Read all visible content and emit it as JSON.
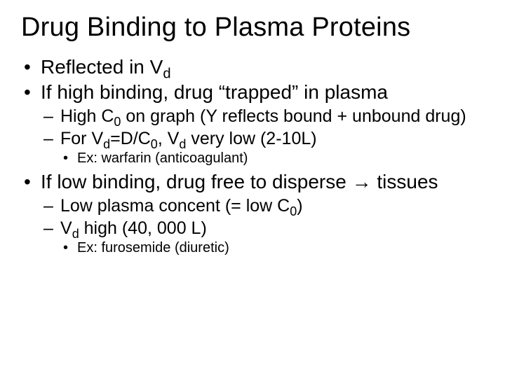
{
  "title_parts": [
    "Drug Binding to Plasma Proteins"
  ],
  "bullets": {
    "b1": {
      "pre": "Reflected in V",
      "sub": "d",
      "post": ""
    },
    "b2": {
      "text": "If high binding, drug “trapped” in plasma"
    },
    "b2_1": {
      "pre": "High C",
      "sub": "0",
      "post": " on graph (Y reflects bound + unbound drug)"
    },
    "b2_2": {
      "t1": "For V",
      "s1": "d",
      "t2": "=D/C",
      "s2": "0",
      "t3": ", V",
      "s3": "d",
      "t4": " very low (2-10L)"
    },
    "b2_2_1": {
      "text": "Ex:  warfarin (anticoagulant)"
    },
    "b3": {
      "pre": "If low binding, drug free to disperse ",
      "arrow": "→",
      "post": " tissues"
    },
    "b3_1": {
      "pre": "Low plasma concent (= low C",
      "sub": "0",
      "post": ")"
    },
    "b3_2": {
      "pre": "V",
      "sub": "d",
      "post": " high (40, 000 L)"
    },
    "b3_2_1": {
      "text": "Ex:  furosemide (diuretic)"
    }
  }
}
